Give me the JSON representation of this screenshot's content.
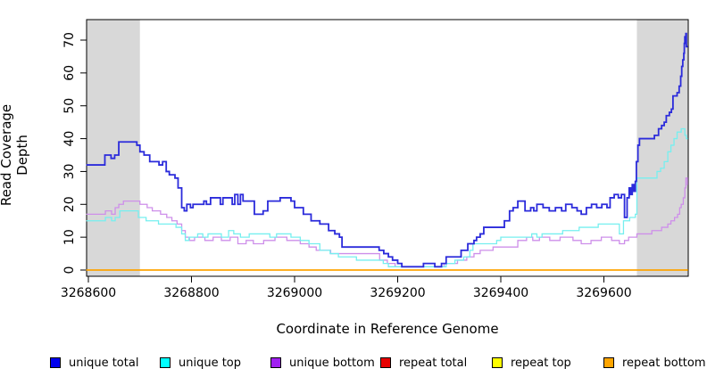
{
  "figure": {
    "y_axis_title": "Read Coverage Depth",
    "x_axis_title": "Coordinate in Reference Genome"
  },
  "chart_data": {
    "type": "line",
    "step": true,
    "title": "",
    "xlabel": "Coordinate in Reference Genome",
    "ylabel": "Read Coverage Depth",
    "xlim": [
      3268596,
      3269763
    ],
    "ylim": [
      0,
      76
    ],
    "x_ticks": [
      3268600,
      3268800,
      3269000,
      3269200,
      3269400,
      3269600
    ],
    "y_ticks": [
      0,
      10,
      20,
      30,
      40,
      50,
      60,
      70
    ],
    "grid": false,
    "legend_position": "bottom",
    "highlight_color": "#d8d8d8",
    "highlight_regions": [
      {
        "x0": 3268596,
        "x1": 3268700
      },
      {
        "x0": 3269664,
        "x1": 3269763
      }
    ],
    "series": [
      {
        "name": "unique total",
        "legend_color": "#0000ee",
        "line_color": "#2b2bdb",
        "line_width": 1.8,
        "z": 3,
        "points": [
          [
            3268596,
            32
          ],
          [
            3268632,
            35
          ],
          [
            3268644,
            34
          ],
          [
            3268651,
            35
          ],
          [
            3268659,
            39
          ],
          [
            3268694,
            38
          ],
          [
            3268700,
            36
          ],
          [
            3268708,
            35
          ],
          [
            3268719,
            33
          ],
          [
            3268737,
            32
          ],
          [
            3268744,
            33
          ],
          [
            3268751,
            30
          ],
          [
            3268757,
            29
          ],
          [
            3268768,
            28
          ],
          [
            3268774,
            25
          ],
          [
            3268781,
            19
          ],
          [
            3268786,
            18
          ],
          [
            3268791,
            20
          ],
          [
            3268798,
            19
          ],
          [
            3268803,
            20
          ],
          [
            3268824,
            21
          ],
          [
            3268829,
            20
          ],
          [
            3268837,
            22
          ],
          [
            3268856,
            20
          ],
          [
            3268861,
            22
          ],
          [
            3268879,
            20
          ],
          [
            3268884,
            23
          ],
          [
            3268890,
            20
          ],
          [
            3268895,
            23
          ],
          [
            3268900,
            21
          ],
          [
            3268922,
            17
          ],
          [
            3268939,
            18
          ],
          [
            3268948,
            21
          ],
          [
            3268972,
            22
          ],
          [
            3268993,
            21
          ],
          [
            3269000,
            19
          ],
          [
            3269017,
            17
          ],
          [
            3269032,
            15
          ],
          [
            3269049,
            14
          ],
          [
            3269066,
            12
          ],
          [
            3269078,
            11
          ],
          [
            3269087,
            10
          ],
          [
            3269092,
            7
          ],
          [
            3269164,
            6
          ],
          [
            3269173,
            5
          ],
          [
            3269182,
            4
          ],
          [
            3269190,
            3
          ],
          [
            3269200,
            2
          ],
          [
            3269208,
            1
          ],
          [
            3269250,
            2
          ],
          [
            3269272,
            1
          ],
          [
            3269285,
            2
          ],
          [
            3269294,
            4
          ],
          [
            3269323,
            6
          ],
          [
            3269336,
            8
          ],
          [
            3269348,
            9
          ],
          [
            3269353,
            10
          ],
          [
            3269360,
            11
          ],
          [
            3269367,
            13
          ],
          [
            3269407,
            15
          ],
          [
            3269417,
            18
          ],
          [
            3269424,
            19
          ],
          [
            3269433,
            21
          ],
          [
            3269447,
            18
          ],
          [
            3269458,
            19
          ],
          [
            3269464,
            18
          ],
          [
            3269470,
            20
          ],
          [
            3269482,
            19
          ],
          [
            3269494,
            18
          ],
          [
            3269506,
            19
          ],
          [
            3269518,
            18
          ],
          [
            3269526,
            20
          ],
          [
            3269538,
            19
          ],
          [
            3269548,
            18
          ],
          [
            3269556,
            17
          ],
          [
            3269566,
            19
          ],
          [
            3269576,
            20
          ],
          [
            3269586,
            19
          ],
          [
            3269596,
            20
          ],
          [
            3269606,
            19
          ],
          [
            3269612,
            22
          ],
          [
            3269620,
            23
          ],
          [
            3269628,
            22
          ],
          [
            3269634,
            23
          ],
          [
            3269640,
            16
          ],
          [
            3269645,
            22
          ],
          [
            3269649,
            25
          ],
          [
            3269652,
            23
          ],
          [
            3269655,
            26
          ],
          [
            3269658,
            24
          ],
          [
            3269661,
            27
          ],
          [
            3269663,
            33
          ],
          [
            3269666,
            38
          ],
          [
            3269669,
            40
          ],
          [
            3269698,
            41
          ],
          [
            3269706,
            43
          ],
          [
            3269712,
            44
          ],
          [
            3269717,
            45
          ],
          [
            3269721,
            47
          ],
          [
            3269727,
            48
          ],
          [
            3269731,
            49
          ],
          [
            3269734,
            53
          ],
          [
            3269742,
            54
          ],
          [
            3269746,
            56
          ],
          [
            3269749,
            59
          ],
          [
            3269751,
            62
          ],
          [
            3269753,
            64
          ],
          [
            3269755,
            66
          ],
          [
            3269756,
            69
          ],
          [
            3269757,
            71
          ],
          [
            3269759,
            72
          ],
          [
            3269760,
            68
          ]
        ]
      },
      {
        "name": "unique top",
        "legend_color": "#00ffff",
        "line_color": "#76efef",
        "line_width": 1.3,
        "z": 2,
        "points": [
          [
            3268596,
            15
          ],
          [
            3268633,
            16
          ],
          [
            3268645,
            15
          ],
          [
            3268652,
            16
          ],
          [
            3268661,
            18
          ],
          [
            3268697,
            16
          ],
          [
            3268712,
            15
          ],
          [
            3268736,
            14
          ],
          [
            3268770,
            13
          ],
          [
            3268781,
            11
          ],
          [
            3268788,
            9
          ],
          [
            3268795,
            10
          ],
          [
            3268812,
            11
          ],
          [
            3268822,
            10
          ],
          [
            3268832,
            11
          ],
          [
            3268858,
            10
          ],
          [
            3268872,
            12
          ],
          [
            3268882,
            11
          ],
          [
            3268895,
            10
          ],
          [
            3268912,
            11
          ],
          [
            3268952,
            10
          ],
          [
            3268965,
            11
          ],
          [
            3268993,
            10
          ],
          [
            3269011,
            9
          ],
          [
            3269028,
            8
          ],
          [
            3269049,
            6
          ],
          [
            3269069,
            5
          ],
          [
            3269085,
            4
          ],
          [
            3269120,
            3
          ],
          [
            3269172,
            2
          ],
          [
            3269182,
            1
          ],
          [
            3269294,
            2
          ],
          [
            3269311,
            3
          ],
          [
            3269328,
            4
          ],
          [
            3269340,
            6
          ],
          [
            3269346,
            8
          ],
          [
            3269392,
            9
          ],
          [
            3269400,
            10
          ],
          [
            3269460,
            11
          ],
          [
            3269470,
            10
          ],
          [
            3269480,
            11
          ],
          [
            3269520,
            12
          ],
          [
            3269552,
            13
          ],
          [
            3269589,
            14
          ],
          [
            3269630,
            11
          ],
          [
            3269638,
            15
          ],
          [
            3269650,
            16
          ],
          [
            3269661,
            17
          ],
          [
            3269664,
            28
          ],
          [
            3269703,
            30
          ],
          [
            3269710,
            31
          ],
          [
            3269717,
            33
          ],
          [
            3269724,
            36
          ],
          [
            3269730,
            38
          ],
          [
            3269736,
            40
          ],
          [
            3269742,
            42
          ],
          [
            3269750,
            43
          ],
          [
            3269757,
            41
          ],
          [
            3269760,
            40
          ]
        ]
      },
      {
        "name": "unique bottom",
        "legend_color": "#a020f0",
        "line_color": "#ce8fea",
        "line_width": 1.3,
        "z": 1,
        "points": [
          [
            3268596,
            17
          ],
          [
            3268633,
            18
          ],
          [
            3268645,
            17
          ],
          [
            3268652,
            19
          ],
          [
            3268659,
            20
          ],
          [
            3268668,
            21
          ],
          [
            3268700,
            20
          ],
          [
            3268714,
            19
          ],
          [
            3268724,
            18
          ],
          [
            3268740,
            17
          ],
          [
            3268752,
            16
          ],
          [
            3268762,
            15
          ],
          [
            3268772,
            14
          ],
          [
            3268781,
            12
          ],
          [
            3268788,
            10
          ],
          [
            3268796,
            9
          ],
          [
            3268806,
            10
          ],
          [
            3268826,
            9
          ],
          [
            3268842,
            10
          ],
          [
            3268858,
            9
          ],
          [
            3268875,
            10
          ],
          [
            3268890,
            8
          ],
          [
            3268906,
            9
          ],
          [
            3268920,
            8
          ],
          [
            3268940,
            9
          ],
          [
            3268962,
            10
          ],
          [
            3268985,
            9
          ],
          [
            3269011,
            8
          ],
          [
            3269028,
            7
          ],
          [
            3269042,
            6
          ],
          [
            3269070,
            5
          ],
          [
            3269165,
            3
          ],
          [
            3269180,
            2
          ],
          [
            3269195,
            1
          ],
          [
            3269290,
            2
          ],
          [
            3269316,
            3
          ],
          [
            3269334,
            4
          ],
          [
            3269348,
            5
          ],
          [
            3269360,
            6
          ],
          [
            3269385,
            7
          ],
          [
            3269433,
            9
          ],
          [
            3269450,
            10
          ],
          [
            3269462,
            9
          ],
          [
            3269475,
            10
          ],
          [
            3269495,
            9
          ],
          [
            3269515,
            10
          ],
          [
            3269540,
            9
          ],
          [
            3269556,
            8
          ],
          [
            3269575,
            9
          ],
          [
            3269595,
            10
          ],
          [
            3269615,
            9
          ],
          [
            3269630,
            8
          ],
          [
            3269640,
            9
          ],
          [
            3269648,
            10
          ],
          [
            3269664,
            11
          ],
          [
            3269693,
            12
          ],
          [
            3269712,
            13
          ],
          [
            3269724,
            14
          ],
          [
            3269730,
            15
          ],
          [
            3269737,
            16
          ],
          [
            3269743,
            17
          ],
          [
            3269747,
            19
          ],
          [
            3269750,
            20
          ],
          [
            3269754,
            22
          ],
          [
            3269757,
            25
          ],
          [
            3269759,
            28
          ],
          [
            3269762,
            26
          ]
        ]
      },
      {
        "name": "repeat total",
        "legend_color": "#e60000",
        "line_color": "#e60000",
        "line_width": 1.2,
        "z": 4,
        "points": [
          [
            3268596,
            0
          ]
        ]
      },
      {
        "name": "repeat top",
        "legend_color": "#ffff00",
        "line_color": "#ffff00",
        "line_width": 1.2,
        "z": 5,
        "points": [
          [
            3268596,
            0
          ]
        ]
      },
      {
        "name": "repeat bottom",
        "legend_color": "#ffa500",
        "line_color": "#ffa500",
        "line_width": 1.5,
        "z": 6,
        "points": [
          [
            3268596,
            0
          ]
        ]
      }
    ]
  }
}
